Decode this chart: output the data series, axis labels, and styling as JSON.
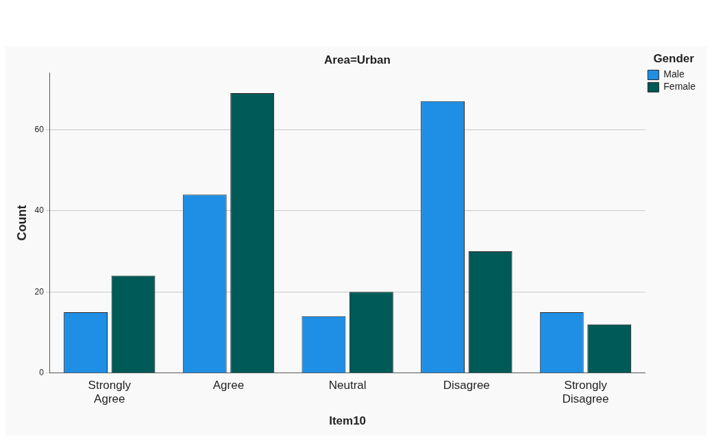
{
  "chart_data": {
    "type": "bar",
    "title": "Area=Urban",
    "xlabel": "Item10",
    "ylabel": "Count",
    "legend_title": "Gender",
    "categories": [
      "Strongly Agree",
      "Agree",
      "Neutral",
      "Disagree",
      "Strongly Disagree"
    ],
    "series": [
      {
        "name": "Male",
        "color": "#1f8fe6",
        "values": [
          15,
          44,
          14,
          67,
          15
        ]
      },
      {
        "name": "Female",
        "color": "#005a57",
        "values": [
          24,
          69,
          20,
          30,
          12
        ]
      }
    ],
    "ylim": [
      0,
      74
    ],
    "yticks": [
      0,
      20,
      40,
      60
    ],
    "grid": "y",
    "legend": "top right"
  }
}
